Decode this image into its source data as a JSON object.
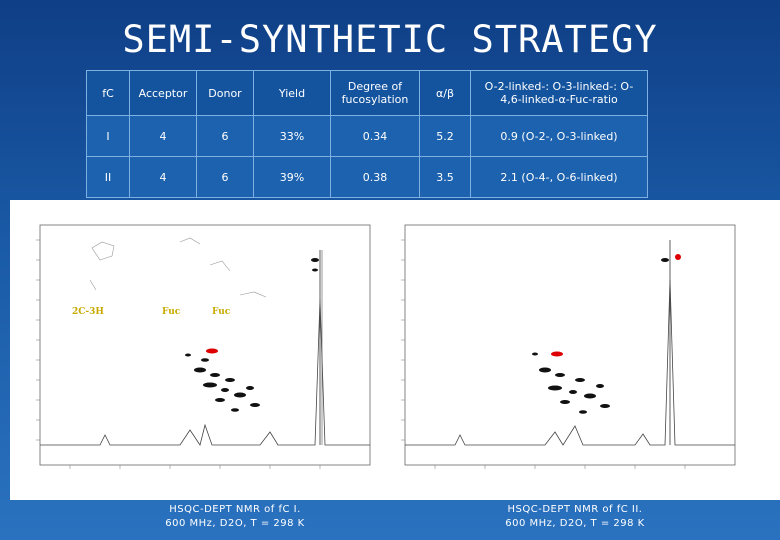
{
  "slide": {
    "title": "SEMI-SYNTHETIC STRATEGY"
  },
  "table": {
    "headers": [
      "fC",
      "Acceptor",
      "Donor",
      "Yield",
      "Degree of fucosylation",
      "α/β",
      "O-2-linked-: O-3-linked-: O-4,6-linked-α-Fuc-ratio"
    ],
    "rows": [
      [
        "I",
        "4",
        "6",
        "33%",
        "0.34",
        "5.2",
        "0.9 (O-2-, O-3-linked)"
      ],
      [
        "II",
        "4",
        "6",
        "39%",
        "0.38",
        "3.5",
        "2.1 (O-4-, O-6-linked)"
      ]
    ]
  },
  "spectra": {
    "left": {
      "overlay_labels": [
        "2C-3H",
        "Fuc",
        "Fuc"
      ]
    },
    "captions": {
      "left": [
        "HSQC-DEPT NMR of fC I.",
        "600 MHz, D2O, T = 298 K"
      ],
      "right": [
        "HSQC-DEPT NMR of fC II.",
        "600 MHz, D2O, T = 298 K"
      ]
    }
  },
  "colors": {
    "background": "#1a5aa6",
    "table_border": "#7fb0e2",
    "highlight_peak": "#dd0000",
    "overlay_label": "#c9a900"
  }
}
